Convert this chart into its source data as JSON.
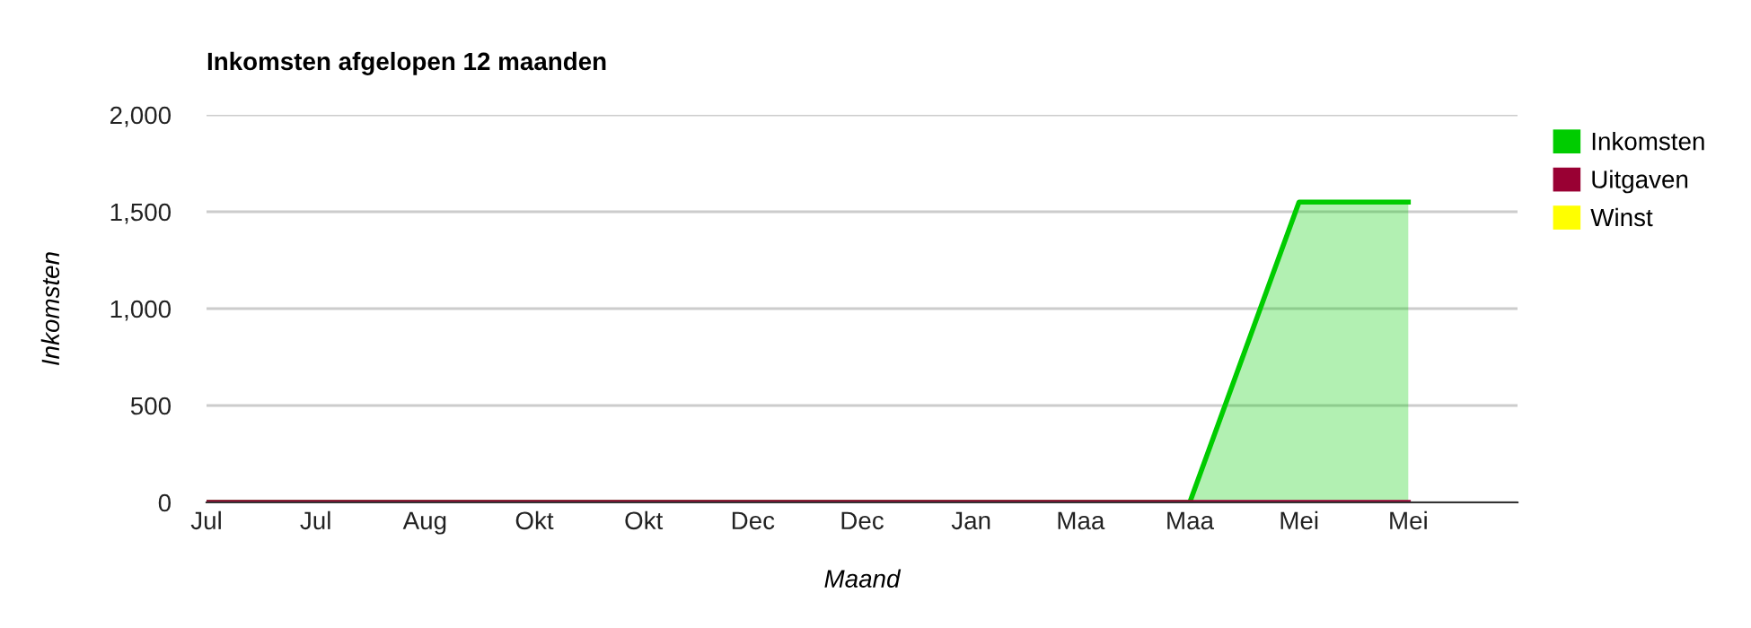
{
  "chart_data": {
    "type": "area",
    "title": "Inkomsten afgelopen 12 maanden",
    "xlabel": "Maand",
    "ylabel": "Inkomsten",
    "categories": [
      "Jul",
      "Jul",
      "Aug",
      "Okt",
      "Okt",
      "Dec",
      "Dec",
      "Jan",
      "Maa",
      "Maa",
      "Mei",
      "Mei",
      null
    ],
    "series": [
      {
        "name": "Inkomsten",
        "color": "#00cc00",
        "values": [
          0,
          0,
          0,
          0,
          0,
          0,
          0,
          0,
          0,
          0,
          1550,
          1550,
          null
        ]
      },
      {
        "name": "Uitgaven",
        "type": "line",
        "color": "#990033",
        "values": [
          0,
          0,
          0,
          0,
          0,
          0,
          0,
          0,
          0,
          0,
          0,
          0,
          null
        ]
      },
      {
        "name": "Winst",
        "color": "#ffff00",
        "values": [
          null,
          null,
          null,
          null,
          null,
          null,
          null,
          null,
          null,
          null,
          null,
          null,
          null
        ]
      }
    ],
    "ylim": [
      0,
      2000
    ],
    "yticks": [
      {
        "value": 0,
        "label": "0"
      },
      {
        "value": 500,
        "label": "500"
      },
      {
        "value": 1000,
        "label": "1,000"
      },
      {
        "value": 1500,
        "label": "1,500"
      },
      {
        "value": 2000,
        "label": "2,000"
      }
    ],
    "grid": "y",
    "legend": "top right"
  }
}
